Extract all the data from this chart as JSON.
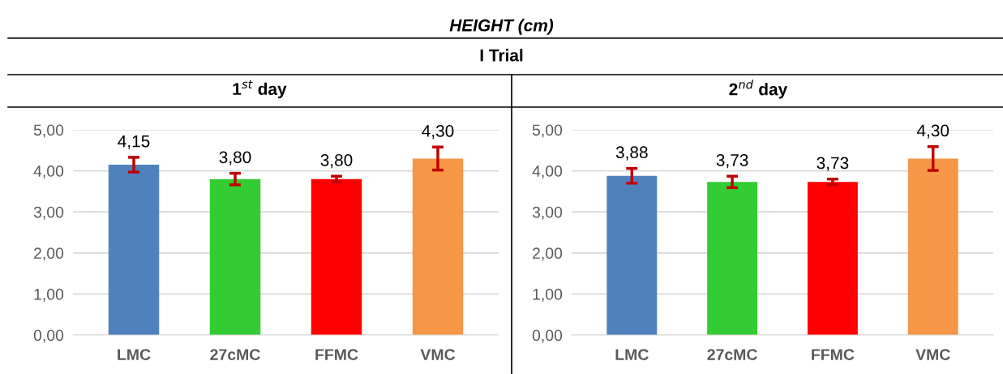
{
  "chart_data": [
    {
      "type": "bar",
      "title": "1$^{st}$ day",
      "annotations": [
        "HEIGHT (cm)",
        "I Trial"
      ],
      "categories": [
        "LMC",
        "27cMC",
        "FFMC",
        "VMC"
      ],
      "values": [
        4.15,
        3.8,
        3.8,
        4.3
      ],
      "colors": [
        "#4f81bd",
        "#33cc33",
        "#ff0000",
        "#f79646"
      ],
      "errors": [
        0.18,
        0.14,
        0.07,
        0.28
      ],
      "value_labels": [
        "4,15",
        "3,80",
        "3,80",
        "4,30"
      ],
      "ylim": [
        0,
        5
      ],
      "yticks": [
        {
          "value": 0,
          "label": "0,00"
        },
        {
          "value": 1,
          "label": "1,00"
        },
        {
          "value": 2,
          "label": "2,00"
        },
        {
          "value": 3,
          "label": "3,00"
        },
        {
          "value": 4,
          "label": "4,00"
        },
        {
          "value": 5,
          "label": "5,00"
        }
      ],
      "grid": "y"
    },
    {
      "type": "bar",
      "title": "2$^{nd}$ day",
      "categories": [
        "LMC",
        "27cMC",
        "FFMC",
        "VMC"
      ],
      "values": [
        3.88,
        3.73,
        3.73,
        4.3
      ],
      "colors": [
        "#4f81bd",
        "#33cc33",
        "#ff0000",
        "#f79646"
      ],
      "errors": [
        0.18,
        0.14,
        0.07,
        0.29
      ],
      "value_labels": [
        "3,88",
        "3,73",
        "3,73",
        "4,30"
      ],
      "ylim": [
        0,
        5
      ],
      "yticks": [
        {
          "value": 0,
          "label": "0,00"
        },
        {
          "value": 1,
          "label": "1,00"
        },
        {
          "value": 2,
          "label": "2,00"
        },
        {
          "value": 3,
          "label": "3,00"
        },
        {
          "value": 4,
          "label": "4,00"
        },
        {
          "value": 5,
          "label": "5,00"
        }
      ],
      "grid": "y"
    }
  ]
}
